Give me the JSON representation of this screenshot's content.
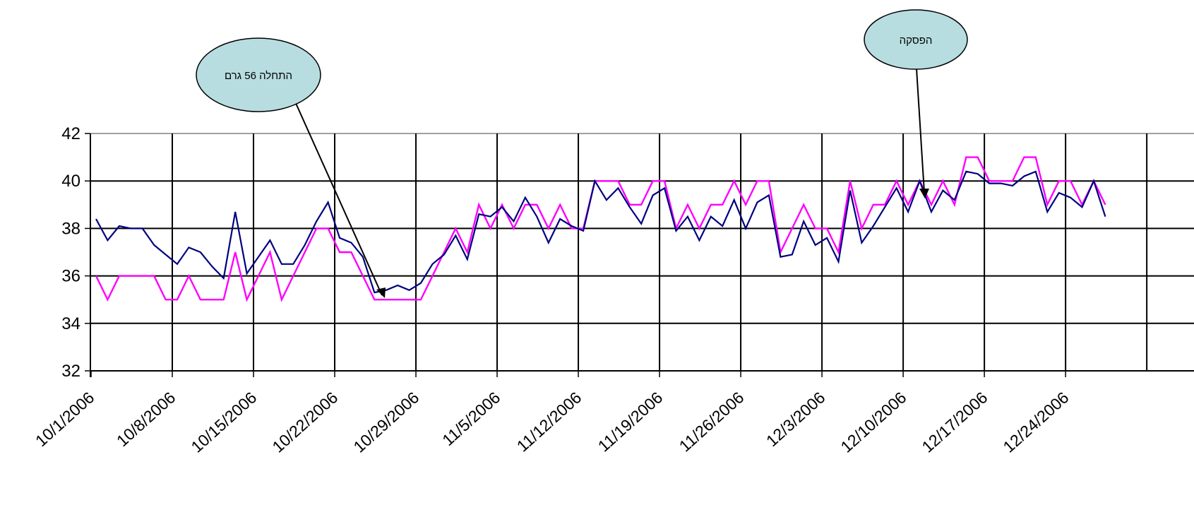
{
  "chart_data": {
    "type": "line",
    "x_start": "10/1/2006",
    "x_ticks": [
      "10/1/2006",
      "10/8/2006",
      "10/15/2006",
      "10/22/2006",
      "10/29/2006",
      "11/5/2006",
      "11/12/2006",
      "11/19/2006",
      "11/26/2006",
      "12/3/2006",
      "12/10/2006",
      "12/17/2006",
      "12/24/2006"
    ],
    "y_ticks": [
      "32",
      "34",
      "36",
      "38",
      "40",
      "42"
    ],
    "ylim": [
      32,
      42
    ],
    "grid": true,
    "colors": {
      "series_1": "#000080",
      "series_2": "#ff00ff"
    },
    "series": [
      {
        "values": [
          38.4,
          37.5,
          38.1,
          38.0,
          38.0,
          37.3,
          36.9,
          36.5,
          37.2,
          37.0,
          36.4,
          35.9,
          38.7,
          36.1,
          36.8,
          37.5,
          36.5,
          36.5,
          37.3,
          38.3,
          39.1,
          37.6,
          37.4,
          36.8,
          35.3,
          35.4,
          35.6,
          35.4,
          35.7,
          36.5,
          36.9,
          37.7,
          36.7,
          38.6,
          38.5,
          38.9,
          38.3,
          39.3,
          38.5,
          37.4,
          38.4,
          38.1,
          37.9,
          40.0,
          39.2,
          39.7,
          38.9,
          38.2,
          39.4,
          39.7,
          37.9,
          38.5,
          37.5,
          38.5,
          38.1,
          39.2,
          38.0,
          39.1,
          39.4,
          36.8,
          36.9,
          38.3,
          37.3,
          37.6,
          36.6,
          39.6,
          37.4,
          38.1,
          38.9,
          39.7,
          38.7,
          40.0,
          38.7,
          39.6,
          39.2,
          40.4,
          40.3,
          39.9,
          39.9,
          39.8,
          40.2,
          40.4,
          38.7,
          39.5,
          39.3,
          38.9,
          40.0,
          38.5
        ]
      },
      {
        "values": [
          36,
          35,
          36,
          36,
          36,
          36,
          35,
          35,
          36,
          35,
          35,
          35,
          37,
          35,
          36,
          37,
          35,
          36,
          37,
          38,
          38,
          37,
          37,
          36,
          35,
          35,
          35,
          35,
          35,
          36,
          37,
          38,
          37,
          39,
          38,
          39,
          38,
          39,
          39,
          38,
          39,
          38,
          38,
          40,
          40,
          40,
          39,
          39,
          40,
          40,
          38,
          39,
          38,
          39,
          39,
          40,
          39,
          40,
          40,
          37,
          38,
          39,
          38,
          38,
          37,
          40,
          38,
          39,
          39,
          40,
          39,
          40,
          39,
          40,
          39,
          41,
          41,
          40,
          40,
          40,
          41,
          41,
          39,
          40,
          40,
          39,
          40,
          39
        ]
      }
    ],
    "annotations": [
      {
        "text": "התחלה 56 גרם"
      },
      {
        "text": "הפסקה"
      }
    ]
  }
}
